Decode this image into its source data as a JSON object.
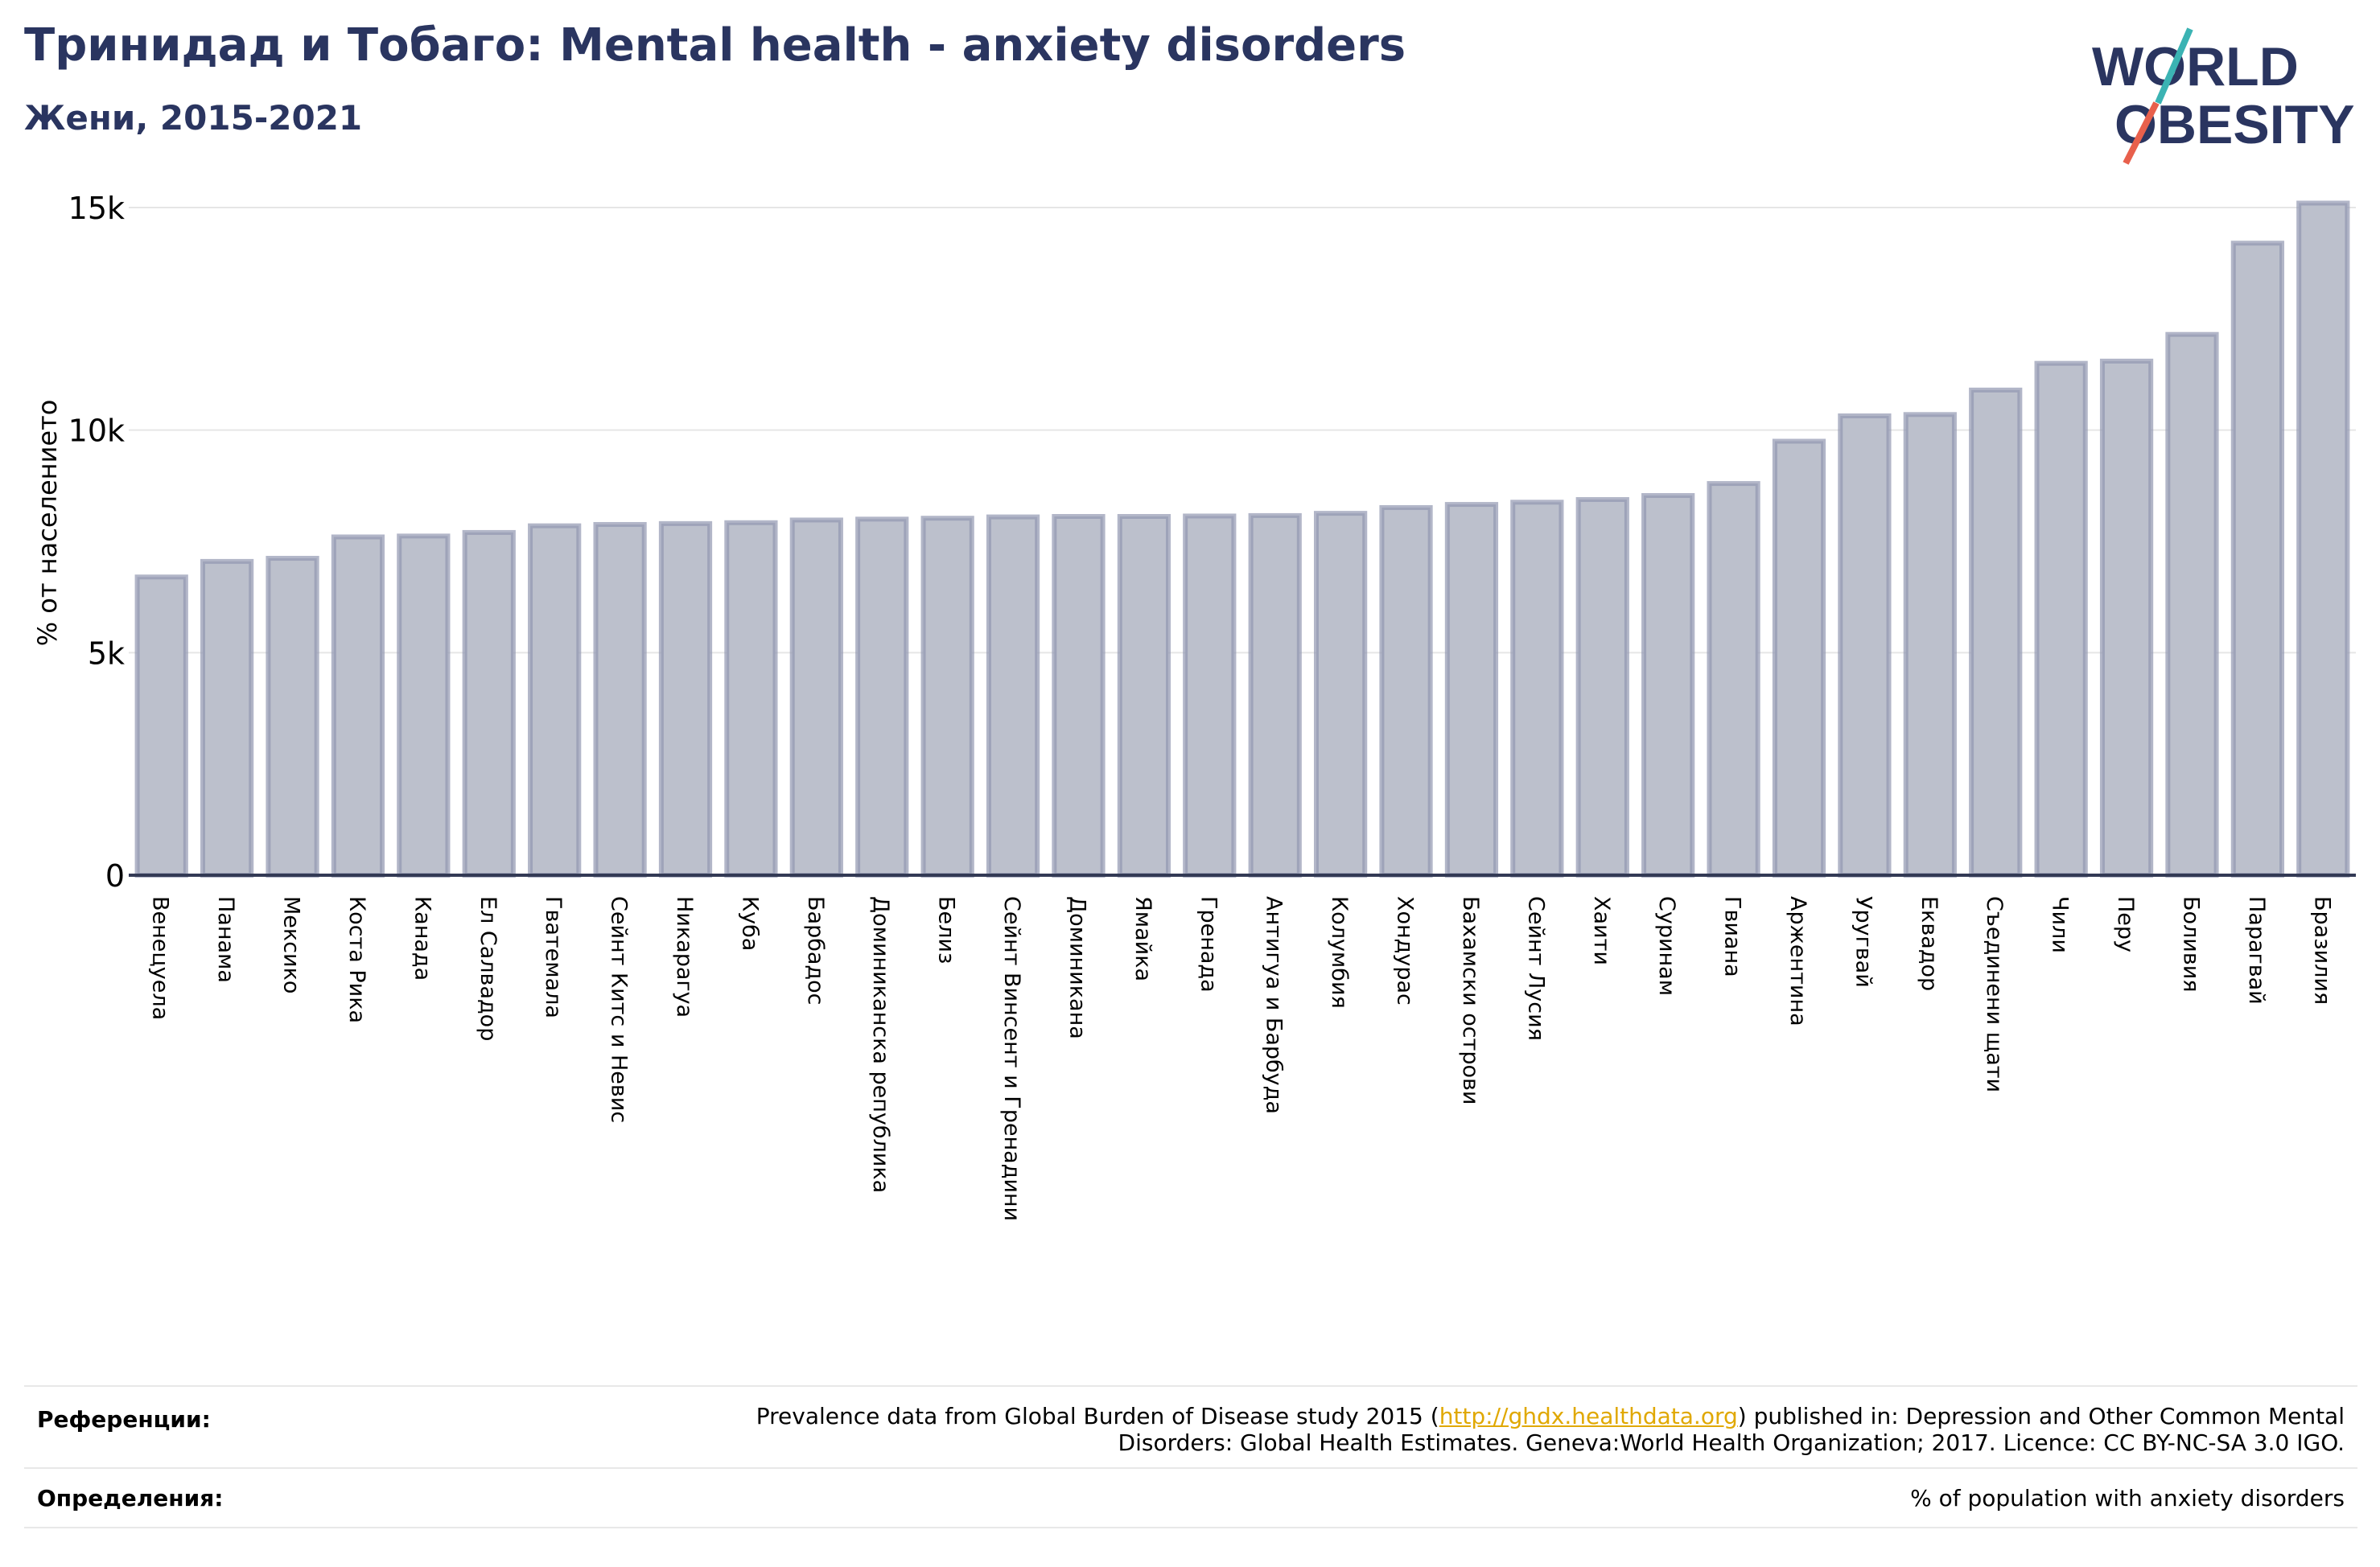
{
  "header": {
    "title": "Тринидад и Тобаго: Mental health - anxiety disorders",
    "subtitle": "Жени, 2015-2021"
  },
  "logo": {
    "line1": "WORLD",
    "line2": "OBESITY"
  },
  "colors": {
    "title": "#2a3560",
    "bar_fill": "#bcc0cc",
    "bar_stroke": "#9297b0",
    "link": "#e0a800",
    "logo_teal": "#3bb3b3",
    "logo_red": "#e8604c"
  },
  "chart_data": {
    "type": "bar",
    "ylabel": "% от населението",
    "ylim": [
      0,
      15000
    ],
    "yticks": [
      0,
      5000,
      10000,
      15000
    ],
    "ytick_labels": [
      "0",
      "5k",
      "10k",
      "15k"
    ],
    "grid": true,
    "categories": [
      "Венецуела",
      "Панама",
      "Мексико",
      "Коста Рика",
      "Канада",
      "Ел Салвадор",
      "Гватемала",
      "Сейнт Китс и Невис",
      "Никарагуа",
      "Куба",
      "Барбадос",
      "Доминиканска република",
      "Белиз",
      "Сейнт Винсент и Гренадини",
      "Доминикана",
      "Ямайка",
      "Гренада",
      "Антигуа и Барбуда",
      "Колумбия",
      "Хондурас",
      "Бахамски острови",
      "Сейнт Лусия",
      "Хаити",
      "Суринам",
      "Гвиана",
      "Аржентина",
      "Уругвай",
      "Еквадор",
      "Съединени щати",
      "Чили",
      "Перу",
      "Боливия",
      "Парагвай",
      "Бразилия"
    ],
    "values": [
      6700,
      7050,
      7120,
      7600,
      7620,
      7700,
      7850,
      7880,
      7900,
      7920,
      7980,
      8000,
      8020,
      8050,
      8060,
      8060,
      8070,
      8080,
      8130,
      8260,
      8330,
      8380,
      8440,
      8530,
      8800,
      9750,
      10320,
      10350,
      10900,
      11500,
      11550,
      12150,
      14200,
      15100
    ]
  },
  "footer": {
    "references_label": "Референции:",
    "references_text_before": "Prevalence data from Global Burden of Disease study 2015 (",
    "references_link": "http://ghdx.healthdata.org",
    "references_text_after": ") published in: Depression and Other Common Mental",
    "references_text_line2": "Disorders: Global Health Estimates. Geneva:World Health Organization; 2017. Licence: CC BY-NC-SA 3.0 IGO.",
    "definitions_label": "Определения:",
    "definitions_text": "% of population with anxiety disorders"
  }
}
